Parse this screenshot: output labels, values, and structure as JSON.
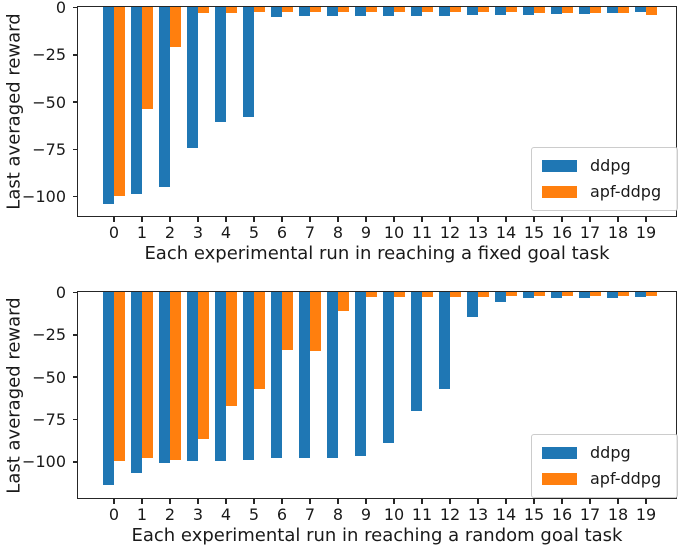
{
  "colors": {
    "ddpg": "#1f77b4",
    "apf_ddpg": "#ff7f0e",
    "spine": "#262626",
    "text": "#1a1a1a"
  },
  "chart_data": [
    {
      "type": "bar",
      "title": "",
      "xlabel": "Each experimental run in reaching a fixed goal task",
      "ylabel": "Last averaged reward",
      "categories": [
        "0",
        "1",
        "2",
        "3",
        "4",
        "5",
        "6",
        "7",
        "8",
        "9",
        "10",
        "11",
        "12",
        "13",
        "14",
        "15",
        "16",
        "17",
        "18",
        "19"
      ],
      "ylim": [
        -110,
        0
      ],
      "yticks": [
        {
          "value": 0,
          "label": "0"
        },
        {
          "value": -25,
          "label": "−25"
        },
        {
          "value": -50,
          "label": "−50"
        },
        {
          "value": -75,
          "label": "−75"
        },
        {
          "value": -100,
          "label": "−100"
        }
      ],
      "grid": false,
      "legend_position": "lower right",
      "series": [
        {
          "name": "ddpg",
          "color": "#1f77b4",
          "values": [
            -104,
            -99,
            -95,
            -74.5,
            -61,
            -58,
            -5,
            -4.5,
            -4.5,
            -4.5,
            -4.5,
            -4.5,
            -4.5,
            -4,
            -4,
            -4,
            -3.5,
            -3.5,
            -3,
            -2.5
          ]
        },
        {
          "name": "apf-ddpg",
          "color": "#ff7f0e",
          "values": [
            -100,
            -54,
            -21,
            -3.2,
            -3.2,
            -2.5,
            -2.5,
            -2.5,
            -2.5,
            -2.5,
            -2.5,
            -2.5,
            -2.5,
            -2.5,
            -2.5,
            -3,
            -3,
            -3,
            -3,
            -4
          ]
        }
      ]
    },
    {
      "type": "bar",
      "title": "",
      "xlabel": "Each experimental run in reaching a random goal task",
      "ylabel": "Last averaged reward",
      "categories": [
        "0",
        "1",
        "2",
        "3",
        "4",
        "5",
        "6",
        "7",
        "8",
        "9",
        "10",
        "11",
        "12",
        "13",
        "14",
        "15",
        "16",
        "17",
        "18",
        "19"
      ],
      "ylim": [
        -121,
        0
      ],
      "yticks": [
        {
          "value": 0,
          "label": "0"
        },
        {
          "value": -25,
          "label": "−25"
        },
        {
          "value": -50,
          "label": "−50"
        },
        {
          "value": -75,
          "label": "−75"
        },
        {
          "value": -100,
          "label": "−100"
        }
      ],
      "grid": false,
      "legend_position": "lower right",
      "series": [
        {
          "name": "ddpg",
          "color": "#1f77b4",
          "values": [
            -114,
            -107,
            -101,
            -100,
            -100,
            -99,
            -98,
            -98,
            -98,
            -97,
            -89,
            -70,
            -57,
            -14.5,
            -6,
            -3.5,
            -3.5,
            -3.5,
            -3.5,
            -3
          ]
        },
        {
          "name": "apf-ddpg",
          "color": "#ff7f0e",
          "values": [
            -100,
            -98,
            -99,
            -87,
            -67,
            -57,
            -34,
            -35,
            -11,
            -3,
            -3,
            -3,
            -3,
            -3,
            -2.5,
            -2.5,
            -2.5,
            -2.5,
            -2.5,
            -2.5
          ]
        }
      ]
    }
  ]
}
